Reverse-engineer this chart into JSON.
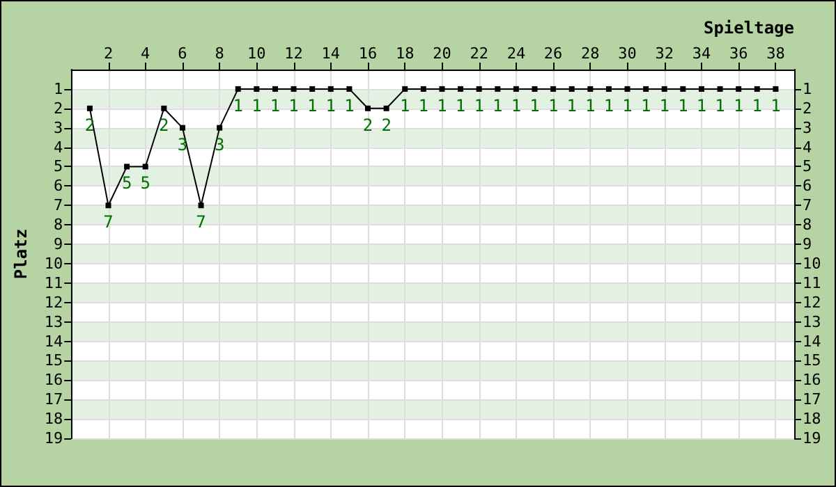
{
  "chart_data": {
    "type": "line",
    "xlabel": "Spieltage",
    "ylabel": "Platz",
    "x": [
      1,
      2,
      3,
      4,
      5,
      6,
      7,
      8,
      9,
      10,
      11,
      12,
      13,
      14,
      15,
      16,
      17,
      18,
      19,
      20,
      21,
      22,
      23,
      24,
      25,
      26,
      27,
      28,
      29,
      30,
      31,
      32,
      33,
      34,
      35,
      36,
      37,
      38
    ],
    "series": [
      {
        "color": "#000000",
        "values": [
          2,
          7,
          5,
          5,
          2,
          3,
          7,
          3,
          1,
          1,
          1,
          1,
          1,
          1,
          1,
          2,
          2,
          1,
          1,
          1,
          1,
          1,
          1,
          1,
          1,
          1,
          1,
          1,
          1,
          1,
          1,
          1,
          1,
          1,
          1,
          1,
          1,
          1
        ]
      }
    ],
    "xlim": [
      0,
      39
    ],
    "xticks": [
      2,
      4,
      6,
      8,
      10,
      12,
      14,
      16,
      18,
      20,
      22,
      24,
      26,
      28,
      30,
      32,
      34,
      36,
      38
    ],
    "ylim": [
      19,
      0
    ],
    "yticks": [
      1,
      2,
      3,
      4,
      5,
      6,
      7,
      8,
      9,
      10,
      11,
      12,
      13,
      14,
      15,
      16,
      17,
      18,
      19
    ],
    "y2lim": [
      19,
      0
    ],
    "y2ticks": [
      1,
      2,
      3,
      4,
      5,
      6,
      7,
      8,
      9,
      10,
      11,
      12,
      13,
      14,
      15,
      16,
      17,
      18,
      19
    ],
    "data_labels": true,
    "grid": true,
    "marker": "square",
    "line_style": "solid"
  }
}
